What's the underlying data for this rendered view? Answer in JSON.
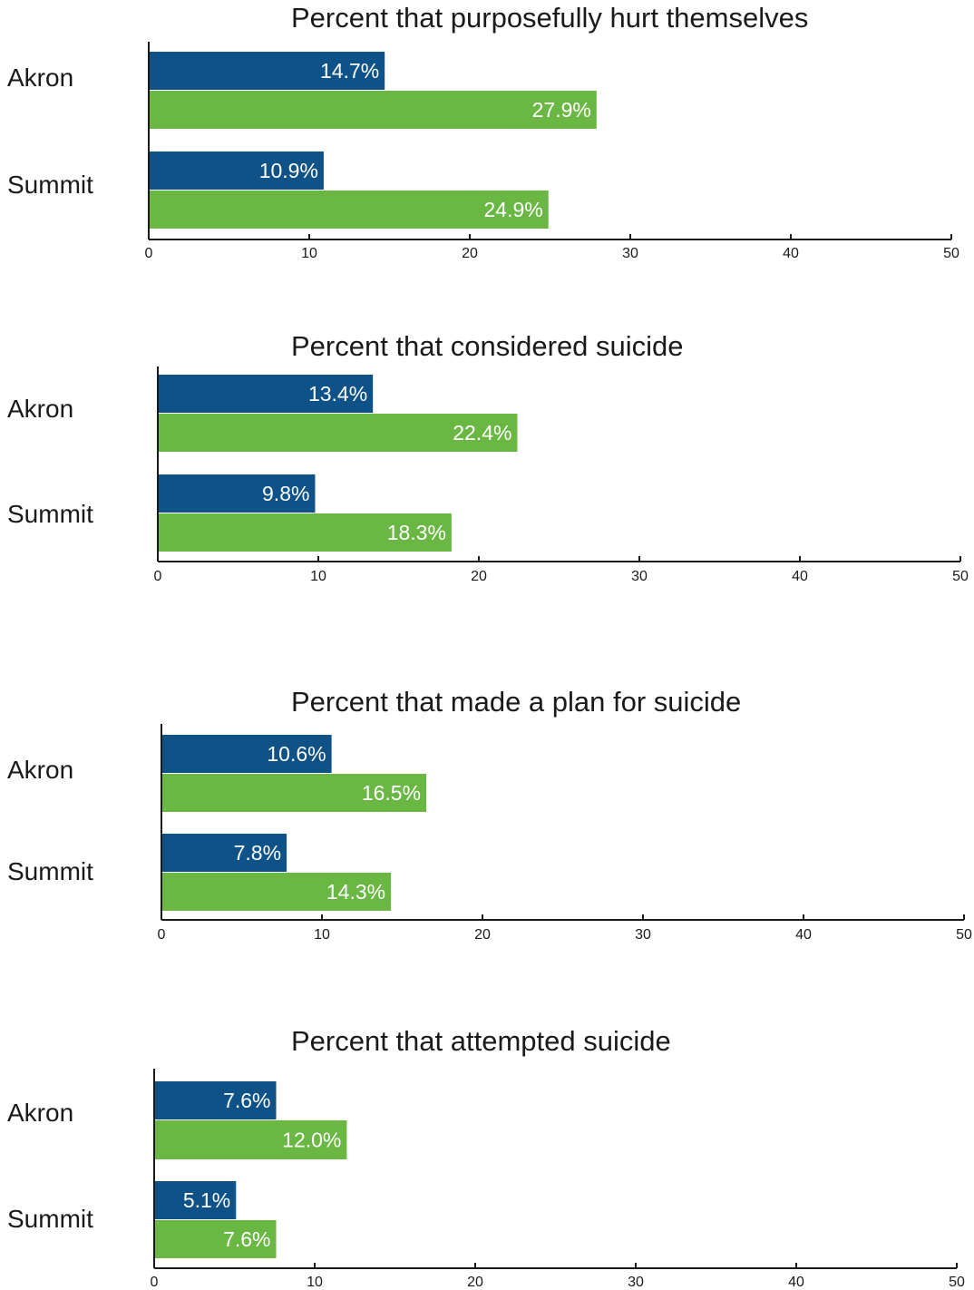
{
  "colors": {
    "series_a": "#0f5287",
    "series_b": "#6ab843",
    "axis": "#1a1a1a"
  },
  "chart_data": [
    {
      "type": "bar",
      "orientation": "horizontal",
      "title": "Percent that purposefully hurt themselves",
      "categories": [
        "Akron",
        "Summit"
      ],
      "series": [
        {
          "values": [
            14.7,
            10.9
          ],
          "labels": [
            "14.7%",
            "10.9%"
          ]
        },
        {
          "values": [
            27.9,
            24.9
          ],
          "labels": [
            "27.9%",
            "24.9%"
          ]
        }
      ],
      "xlim": [
        0,
        50
      ],
      "xticks": [
        "0",
        "10",
        "20",
        "30",
        "40",
        "50"
      ]
    },
    {
      "type": "bar",
      "orientation": "horizontal",
      "title": "Percent that considered suicide",
      "categories": [
        "Akron",
        "Summit"
      ],
      "series": [
        {
          "values": [
            13.4,
            9.8
          ],
          "labels": [
            "13.4%",
            "9.8%"
          ]
        },
        {
          "values": [
            22.4,
            18.3
          ],
          "labels": [
            "22.4%",
            "18.3%"
          ]
        }
      ],
      "xlim": [
        0,
        50
      ],
      "xticks": [
        "0",
        "10",
        "20",
        "30",
        "40",
        "50"
      ]
    },
    {
      "type": "bar",
      "orientation": "horizontal",
      "title": "Percent that made a plan for suicide",
      "categories": [
        "Akron",
        "Summit"
      ],
      "series": [
        {
          "values": [
            10.6,
            7.8
          ],
          "labels": [
            "10.6%",
            "7.8%"
          ]
        },
        {
          "values": [
            16.5,
            14.3
          ],
          "labels": [
            "16.5%",
            "14.3%"
          ]
        }
      ],
      "xlim": [
        0,
        50
      ],
      "xticks": [
        "0",
        "10",
        "20",
        "30",
        "40",
        "50"
      ]
    },
    {
      "type": "bar",
      "orientation": "horizontal",
      "title": "Percent that attempted suicide",
      "categories": [
        "Akron",
        "Summit"
      ],
      "series": [
        {
          "values": [
            7.6,
            5.1
          ],
          "labels": [
            "7.6%",
            "5.1%"
          ]
        },
        {
          "values": [
            12.0,
            7.6
          ],
          "labels": [
            "12.0%",
            "7.6%"
          ]
        }
      ],
      "xlim": [
        0,
        50
      ],
      "xticks": [
        "0",
        "10",
        "20",
        "30",
        "40",
        "50"
      ]
    }
  ]
}
